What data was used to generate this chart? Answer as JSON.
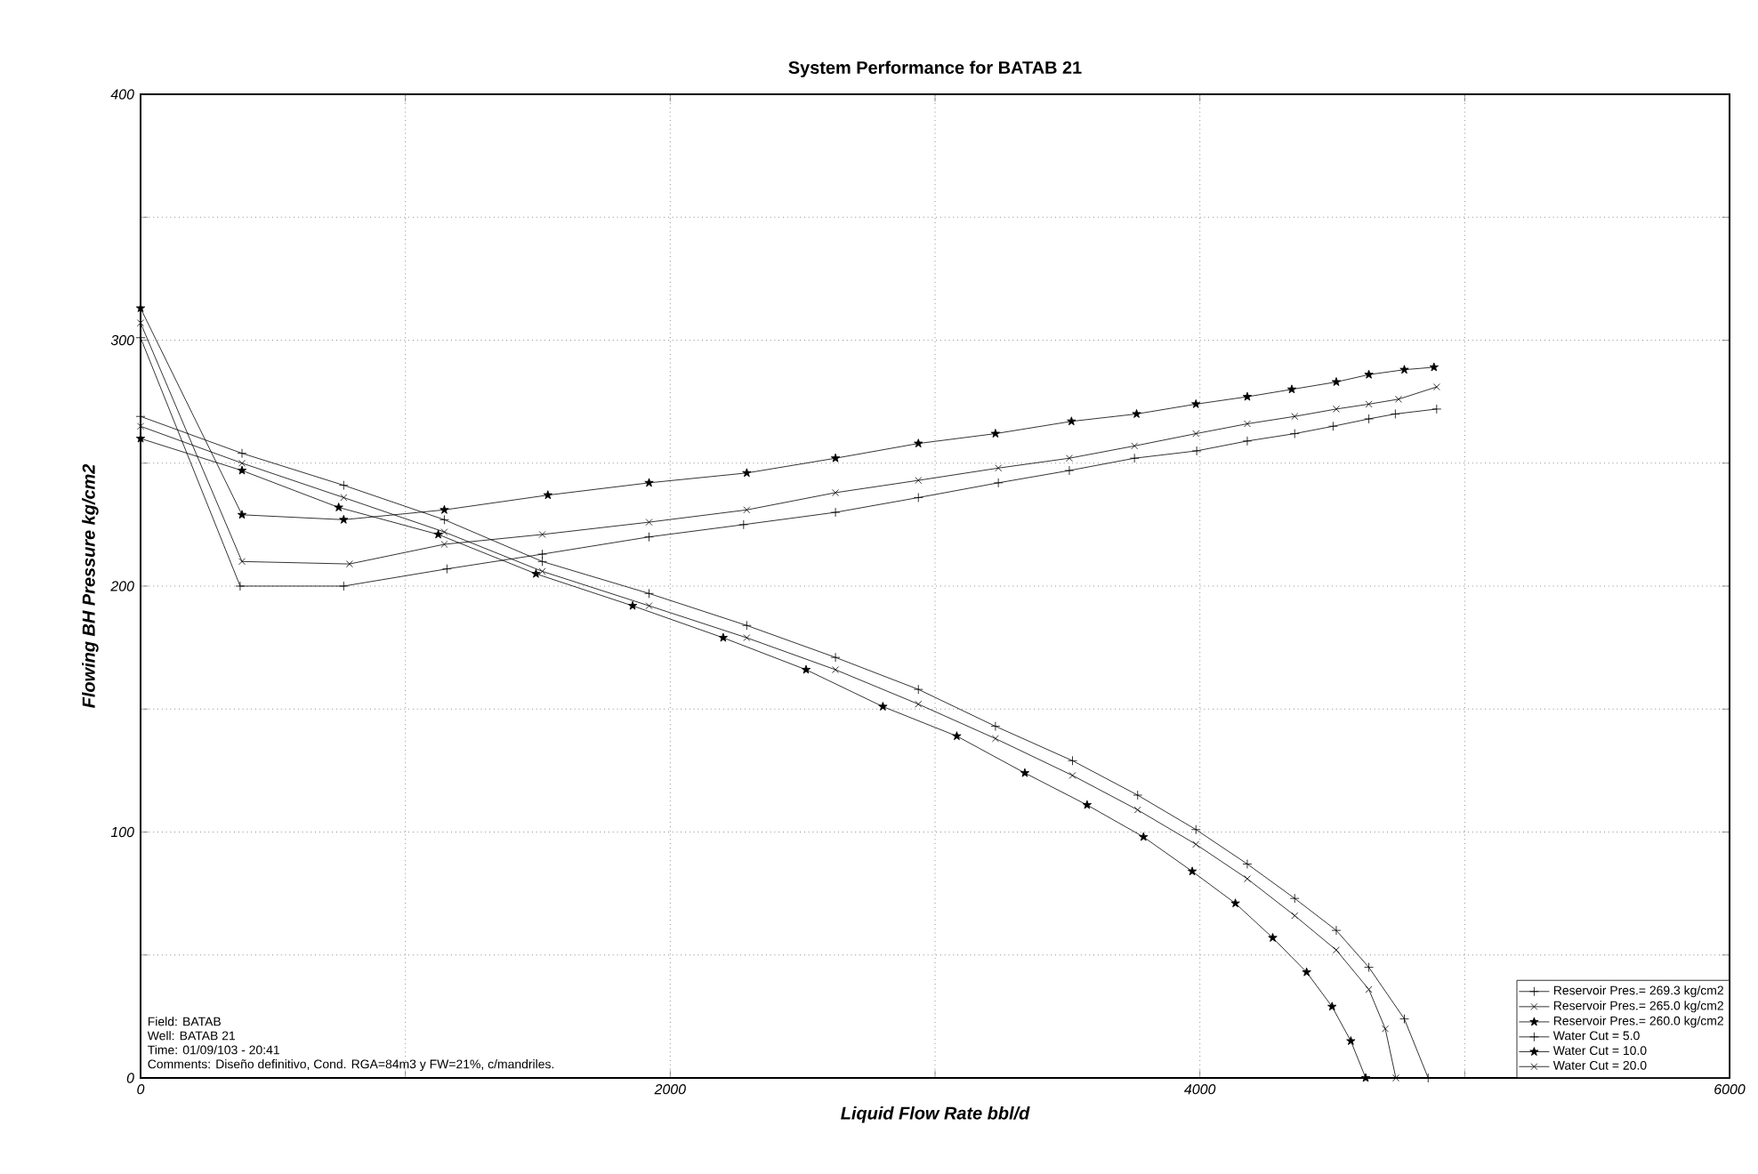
{
  "chart_data": {
    "type": "line",
    "title": "System Performance for BATAB 21",
    "xlabel": "Liquid Flow Rate bbl/d",
    "ylabel": "Flowing BH Pressure kg/cm2",
    "xlim": [
      0,
      6000
    ],
    "ylim": [
      0,
      400
    ],
    "xticks": [
      0,
      {
        "value": 1000,
        "label": null
      },
      2000,
      {
        "value": 3000,
        "label": null
      },
      4000,
      {
        "value": 5000,
        "label": null
      },
      6000
    ],
    "yticks": [
      0,
      {
        "value": 50,
        "label": null
      },
      100,
      {
        "value": 150,
        "label": null
      },
      200,
      {
        "value": 250,
        "label": null
      },
      300,
      {
        "value": 350,
        "label": null
      },
      400
    ],
    "grid": true,
    "legend": "bottom right",
    "line_style": "solid",
    "annotations": [
      "Field: BATAB",
      "Well: BATAB 21",
      "Time: 01/09/103 - 20:41",
      "Comments: Diseño definitivo, Cond. RGA=84m3 y FW=21%, c/mandriles."
    ],
    "series": [
      {
        "name": "Reservoir Pres.= 269.3 kg/cm2",
        "color": "#000000",
        "marker": "plus",
        "x": [
          0,
          383,
          767,
          1147,
          1517,
          1920,
          2289,
          2624,
          2937,
          3228,
          3519,
          3765,
          3985,
          4179,
          4358,
          4515,
          4638,
          4772,
          4862
        ],
        "values": [
          269,
          254,
          241,
          227,
          210,
          197,
          184,
          171,
          158,
          143,
          129,
          115,
          101,
          87,
          73,
          60,
          45,
          24,
          0
        ]
      },
      {
        "name": "Reservoir Pres.= 265.0 kg/cm2",
        "color": "#000000",
        "marker": "cross",
        "x": [
          0,
          383,
          767,
          1147,
          1517,
          1920,
          2289,
          2624,
          2937,
          3228,
          3519,
          3765,
          3985,
          4179,
          4358,
          4515,
          4638,
          4700,
          4740
        ],
        "values": [
          265,
          250,
          236,
          222,
          206,
          192,
          179,
          166,
          152,
          138,
          123,
          109,
          95,
          81,
          66,
          52,
          36,
          20,
          0
        ]
      },
      {
        "name": "Reservoir Pres.= 260.0 kg/cm2",
        "color": "#000000",
        "marker": "star",
        "x": [
          0,
          383,
          748,
          1124,
          1493,
          1858,
          2200,
          2513,
          2803,
          3082,
          3339,
          3574,
          3787,
          3971,
          4134,
          4275,
          4403,
          4499,
          4570,
          4626
        ],
        "values": [
          260,
          247,
          232,
          221,
          205,
          192,
          179,
          166,
          151,
          139,
          124,
          111,
          98,
          84,
          71,
          57,
          43,
          29,
          15,
          0
        ]
      },
      {
        "name": "Water Cut = 5.0",
        "color": "#000000",
        "marker": "plus",
        "x": [
          0,
          376,
          767,
          1157,
          1517,
          1920,
          2277,
          2624,
          2937,
          3239,
          3507,
          3753,
          3988,
          4179,
          4358,
          4503,
          4638,
          4738,
          4894
        ],
        "values": [
          301,
          200,
          200,
          207,
          213,
          220,
          225,
          230,
          236,
          242,
          247,
          252,
          255,
          259,
          262,
          265,
          268,
          270,
          272
        ]
      },
      {
        "name": "Water Cut = 10.0",
        "color": "#000000",
        "marker": "star",
        "x": [
          0,
          383,
          767,
          1147,
          1538,
          1920,
          2289,
          2624,
          2937,
          3228,
          3515,
          3761,
          3985,
          4179,
          4347,
          4515,
          4638,
          4772,
          4884
        ],
        "values": [
          313,
          229,
          227,
          231,
          237,
          242,
          246,
          252,
          258,
          262,
          267,
          270,
          274,
          277,
          280,
          283,
          286,
          288,
          289
        ]
      },
      {
        "name": "Water Cut = 20.0",
        "color": "#000000",
        "marker": "cross",
        "x": [
          0,
          383,
          789,
          1147,
          1517,
          1920,
          2289,
          2624,
          2937,
          3239,
          3507,
          3753,
          3985,
          4179,
          4358,
          4515,
          4638,
          4750,
          4894
        ],
        "values": [
          307,
          210,
          209,
          217,
          221,
          226,
          231,
          238,
          243,
          248,
          252,
          257,
          262,
          266,
          269,
          272,
          274,
          276,
          281
        ]
      }
    ]
  }
}
